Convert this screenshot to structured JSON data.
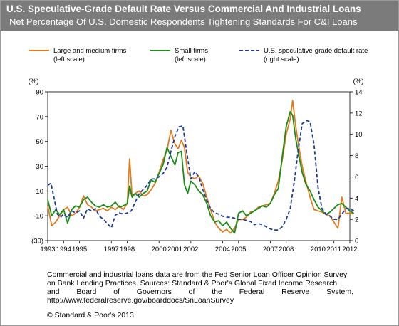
{
  "title": "U.S. Speculative-Grade Default Rate Versus Commercial And Industrial Loans",
  "subtitle": "Net Percentage Of U.S. Domestic Respondents Tightening Standards For C&I Loans",
  "note": {
    "line1": "Commercial and industrial loans data are from the Fed Senior Loan Officer Opinion Survey",
    "line2": "on Bank Lending Practices. Sources: Standard & Poor's Global Fixed Income Research",
    "line3": "and Board of Governors of the Federal Reserve System.",
    "line4": "http://www.federalreserve.gov/boarddocs/SnLoanSurvey"
  },
  "copyright": "© Standard & Poor's 2013.",
  "chart_data": {
    "type": "line",
    "left_axis": {
      "label": "(%)",
      "min": -30,
      "max": 90,
      "ticks": [
        90,
        70,
        50,
        30,
        10,
        -10,
        -30
      ],
      "tick_labels": [
        "90",
        "70",
        "50",
        "30",
        "10",
        "-10",
        "(30)"
      ]
    },
    "right_axis": {
      "label": "(%)",
      "min": 0,
      "max": 14,
      "ticks": [
        14,
        12,
        10,
        8,
        6,
        4,
        2,
        0
      ],
      "tick_labels": [
        "14",
        "12",
        "10",
        "8",
        "6",
        "4",
        "2",
        "0"
      ]
    },
    "x_axis": {
      "min": 1993,
      "max": 2012,
      "ticks": [
        1993,
        1994,
        1995,
        1997,
        1998,
        2000,
        2001,
        2002,
        2004,
        2005,
        2007,
        2008,
        2010,
        2011,
        2012
      ],
      "tick_labels": [
        "1993",
        "1994",
        "1995",
        "1997",
        "1998",
        "2000",
        "2001",
        "2002",
        "2004",
        "2005",
        "2007",
        "2008",
        "2010",
        "2011",
        "2012"
      ]
    },
    "grid": false,
    "legend": {
      "placement": "top"
    },
    "colors": {
      "large": "#e07b20",
      "small": "#1a8c1a",
      "default": "#1f3a93"
    },
    "series": [
      {
        "name": "Large and medium firms",
        "subname": "(left scale)",
        "axis": "left",
        "x": [
          1993.0,
          1993.25,
          1993.5,
          1993.75,
          1994.0,
          1994.25,
          1994.5,
          1994.75,
          1995.0,
          1995.25,
          1995.5,
          1995.75,
          1996.0,
          1996.25,
          1996.5,
          1996.75,
          1997.0,
          1997.25,
          1997.5,
          1997.75,
          1998.0,
          1998.15,
          1998.3,
          1998.5,
          1998.75,
          1999.0,
          1999.25,
          1999.5,
          1999.75,
          2000.0,
          2000.25,
          2000.5,
          2000.75,
          2001.0,
          2001.2,
          2001.4,
          2001.6,
          2001.8,
          2002.0,
          2002.25,
          2002.5,
          2002.75,
          2003.0,
          2003.25,
          2003.5,
          2003.75,
          2004.0,
          2004.25,
          2004.5,
          2004.75,
          2005.0,
          2005.25,
          2005.5,
          2005.75,
          2006.0,
          2006.25,
          2006.5,
          2006.75,
          2007.0,
          2007.25,
          2007.5,
          2007.75,
          2008.0,
          2008.25,
          2008.4,
          2008.6,
          2008.8,
          2009.0,
          2009.25,
          2009.5,
          2009.75,
          2010.0,
          2010.25,
          2010.5,
          2010.75,
          2011.0,
          2011.25,
          2011.5,
          2011.75,
          2012.0,
          2012.25
        ],
        "values": [
          -2,
          -18,
          -15,
          -10,
          -5,
          -3,
          -10,
          -8,
          -3,
          6,
          -1,
          -3,
          -6,
          -5,
          -4,
          -6,
          -3,
          -5,
          -2,
          -5,
          0,
          36,
          6,
          8,
          10,
          6,
          7,
          11,
          16,
          25,
          35,
          43,
          59,
          48,
          44,
          51,
          45,
          25,
          21,
          20,
          22,
          16,
          5,
          -5,
          -15,
          -20,
          -23,
          -21,
          -24,
          -20,
          -13,
          -13,
          -11,
          -7,
          -6,
          -3,
          -2,
          -1,
          0,
          8,
          18,
          35,
          56,
          68,
          83,
          62,
          45,
          30,
          17,
          5,
          -5,
          -6,
          -7,
          -9,
          -10,
          -15,
          -20,
          5,
          -8,
          -8,
          -8
        ]
      },
      {
        "name": "Small firms",
        "subname": "(left scale)",
        "axis": "left",
        "x": [
          1993.0,
          1993.25,
          1993.5,
          1993.75,
          1994.0,
          1994.25,
          1994.5,
          1994.75,
          1995.0,
          1995.25,
          1995.5,
          1995.75,
          1996.0,
          1996.25,
          1996.5,
          1996.75,
          1997.0,
          1997.25,
          1997.5,
          1997.75,
          1998.0,
          1998.15,
          1998.3,
          1998.5,
          1998.75,
          1999.0,
          1999.25,
          1999.5,
          1999.75,
          2000.0,
          2000.25,
          2000.5,
          2000.75,
          2001.0,
          2001.2,
          2001.4,
          2001.6,
          2001.8,
          2002.0,
          2002.25,
          2002.5,
          2002.75,
          2003.0,
          2003.25,
          2003.5,
          2003.75,
          2004.0,
          2004.25,
          2004.5,
          2004.75,
          2005.0,
          2005.25,
          2005.5,
          2005.75,
          2006.0,
          2006.25,
          2006.5,
          2006.75,
          2007.0,
          2007.25,
          2007.5,
          2007.75,
          2008.0,
          2008.25,
          2008.4,
          2008.6,
          2008.8,
          2009.0,
          2009.25,
          2009.5,
          2009.75,
          2010.0,
          2010.25,
          2010.5,
          2010.75,
          2011.0,
          2011.25,
          2011.5,
          2011.75,
          2012.0,
          2012.25
        ],
        "values": [
          3,
          -10,
          -5,
          -9,
          -5,
          -16,
          -5,
          -2,
          -3,
          3,
          5,
          1,
          -2,
          -3,
          -1,
          -3,
          -2,
          1,
          -3,
          -2,
          0,
          14,
          5,
          8,
          5,
          8,
          10,
          19,
          17,
          24,
          31,
          45,
          38,
          31,
          41,
          42,
          15,
          8,
          18,
          15,
          10,
          7,
          0,
          -10,
          -15,
          -14,
          -18,
          -15,
          -20,
          -24,
          -8,
          -6,
          -10,
          -8,
          -6,
          -4,
          -2,
          -3,
          0,
          7,
          12,
          38,
          62,
          74,
          71,
          52,
          38,
          25,
          15,
          10,
          3,
          -3,
          -6,
          -9,
          -7,
          -4,
          -1,
          0,
          -3,
          -6,
          -8
        ]
      },
      {
        "name": "U.S. speculative-grade default rate",
        "subname": "(right scale)",
        "axis": "right",
        "x": [
          1993.0,
          1993.2,
          1993.4,
          1993.6,
          1993.8,
          1994.0,
          1994.25,
          1994.5,
          1994.75,
          1995.0,
          1995.25,
          1995.5,
          1995.75,
          1996.0,
          1996.25,
          1996.5,
          1996.75,
          1997.0,
          1997.25,
          1997.5,
          1997.75,
          1998.0,
          1998.25,
          1998.5,
          1998.75,
          1999.0,
          1999.25,
          1999.5,
          1999.75,
          2000.0,
          2000.25,
          2000.5,
          2000.75,
          2001.0,
          2001.25,
          2001.5,
          2001.75,
          2002.0,
          2002.25,
          2002.5,
          2002.75,
          2003.0,
          2003.25,
          2003.5,
          2003.75,
          2004.0,
          2004.25,
          2004.5,
          2004.75,
          2005.0,
          2005.25,
          2005.5,
          2005.75,
          2006.0,
          2006.25,
          2006.5,
          2006.75,
          2007.0,
          2007.25,
          2007.5,
          2007.75,
          2008.0,
          2008.25,
          2008.5,
          2008.75,
          2009.0,
          2009.25,
          2009.5,
          2009.75,
          2010.0,
          2010.25,
          2010.5,
          2010.75,
          2011.0,
          2011.25,
          2011.5,
          2011.75,
          2012.0,
          2012.25
        ],
        "values": [
          5.2,
          5.4,
          4.0,
          2.5,
          2.2,
          2.5,
          2.2,
          2.8,
          2.6,
          2.8,
          2.1,
          3.0,
          2.8,
          3.0,
          2.3,
          2.0,
          1.6,
          1.2,
          2.4,
          2.6,
          2.5,
          2.6,
          2.8,
          3.6,
          4.4,
          4.8,
          5.2,
          5.8,
          5.8,
          6.0,
          6.3,
          6.9,
          8.4,
          9.8,
          10.7,
          10.8,
          8.2,
          5.8,
          6.5,
          6.0,
          4.8,
          3.8,
          3.0,
          2.6,
          2.5,
          2.3,
          2.2,
          2.2,
          2.1,
          2.0,
          2.0,
          1.9,
          1.8,
          1.5,
          1.6,
          1.5,
          1.3,
          1.1,
          1.0,
          1.0,
          1.3,
          2.0,
          3.0,
          5.5,
          8.5,
          11.0,
          11.3,
          11.2,
          9.0,
          5.0,
          3.0,
          2.5,
          2.3,
          2.0,
          2.0,
          2.5,
          3.0,
          3.0,
          2.8
        ]
      }
    ]
  }
}
